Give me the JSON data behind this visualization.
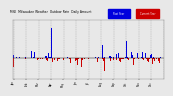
{
  "title": "MKE",
  "subtitle": "Milwaukee Weather  Outdoor Rain  Daily Amount",
  "legend_label_past": "Past Year",
  "legend_label_current": "Current/Previous Year",
  "color_past": "#0000dd",
  "color_current": "#cc0000",
  "background_color": "#e8e8e8",
  "plot_bg": "#e8e8e8",
  "ylim_min": -0.8,
  "ylim_max": 1.5,
  "n_days": 365,
  "seed": 12
}
